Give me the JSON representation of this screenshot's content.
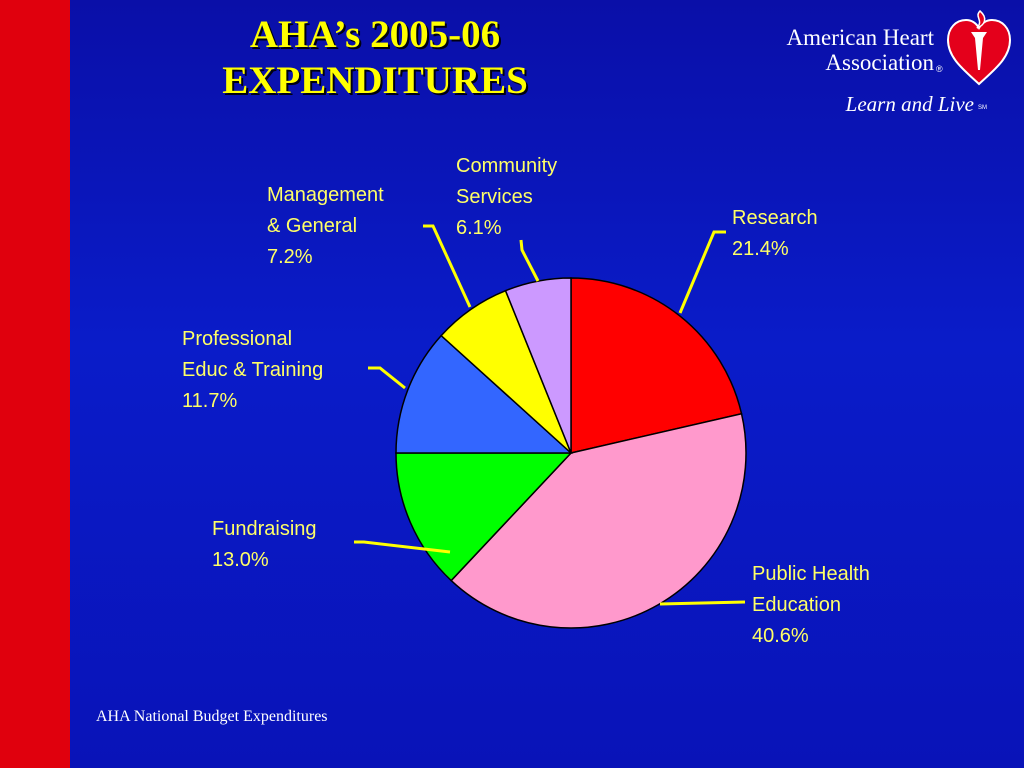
{
  "slide": {
    "title_line1": "AHA’s 2005-06",
    "title_line2": "EXPENDITURES",
    "footer": "AHA National Budget Expenditures"
  },
  "logo": {
    "org_line1": "American Heart",
    "org_line2": "Association",
    "registered": "®",
    "tagline": "Learn and Live",
    "service_mark": "SM",
    "icon": "heart-torch-icon"
  },
  "colors": {
    "background": "#0a14c0",
    "side_bar": "#e0000d",
    "title": "#ffff00",
    "labels": "#ffff66",
    "leader_lines": "#ffff00"
  },
  "chart_data": {
    "type": "pie",
    "title": "AHA’s 2005-06 EXPENDITURES",
    "categories": [
      "Research",
      "Public Health Education",
      "Fundraising",
      "Professional Educ & Training",
      "Management & General",
      "Community Services"
    ],
    "values": [
      21.4,
      40.6,
      13.0,
      11.7,
      7.2,
      6.1
    ],
    "unit": "%",
    "colors": [
      "#ff0000",
      "#ff99cc",
      "#00ff00",
      "#3366ff",
      "#ffff00",
      "#cc99ff"
    ],
    "labels": [
      {
        "lines": [
          "Research",
          "21.4%"
        ]
      },
      {
        "lines": [
          "Public Health",
          "Education",
          "40.6%"
        ]
      },
      {
        "lines": [
          "Fundraising",
          "13.0%"
        ]
      },
      {
        "lines": [
          "Professional",
          "Educ & Training",
          "11.7%"
        ]
      },
      {
        "lines": [
          "Management",
          "& General",
          "7.2%"
        ]
      },
      {
        "lines": [
          "Community",
          "Services",
          "6.1%"
        ]
      }
    ]
  }
}
